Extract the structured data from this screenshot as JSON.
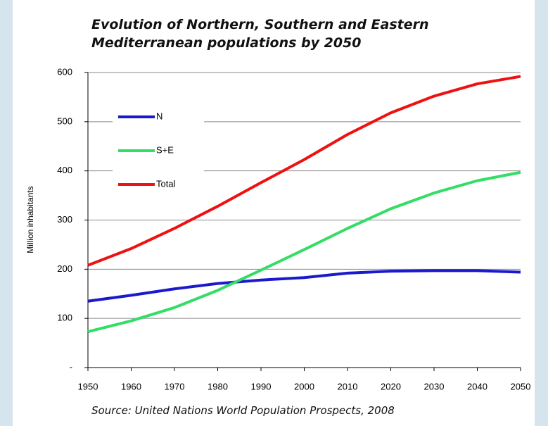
{
  "chart_data": {
    "type": "line",
    "title": "Evolution of Northern, Southern and Eastern Mediterranean populations by 2050",
    "ylabel": "Million inhabitants",
    "source": "Source: United Nations World Population Prospects, 2008",
    "x": [
      1950,
      1960,
      1970,
      1980,
      1990,
      2000,
      2010,
      2020,
      2030,
      2040,
      2050
    ],
    "series": [
      {
        "name": "N",
        "color": "#1a1acc",
        "values": [
          135,
          147,
          160,
          171,
          178,
          183,
          192,
          196,
          197,
          197,
          194
        ]
      },
      {
        "name": "S+E",
        "color": "#33dd66",
        "values": [
          73,
          95,
          122,
          157,
          198,
          240,
          283,
          323,
          355,
          380,
          397
        ]
      },
      {
        "name": "Total",
        "color": "#ee1111",
        "values": [
          208,
          242,
          283,
          328,
          376,
          423,
          474,
          518,
          552,
          577,
          592
        ]
      }
    ],
    "xlim": [
      1950,
      2050
    ],
    "xticks": [
      1950,
      1960,
      1970,
      1980,
      1990,
      2000,
      2010,
      2020,
      2030,
      2040,
      2050
    ],
    "ylim": [
      0,
      600
    ],
    "yticks": [
      {
        "value": 0,
        "label": "-"
      },
      100,
      200,
      300,
      400,
      500,
      600
    ],
    "grid": true,
    "legend": "upper-left"
  }
}
